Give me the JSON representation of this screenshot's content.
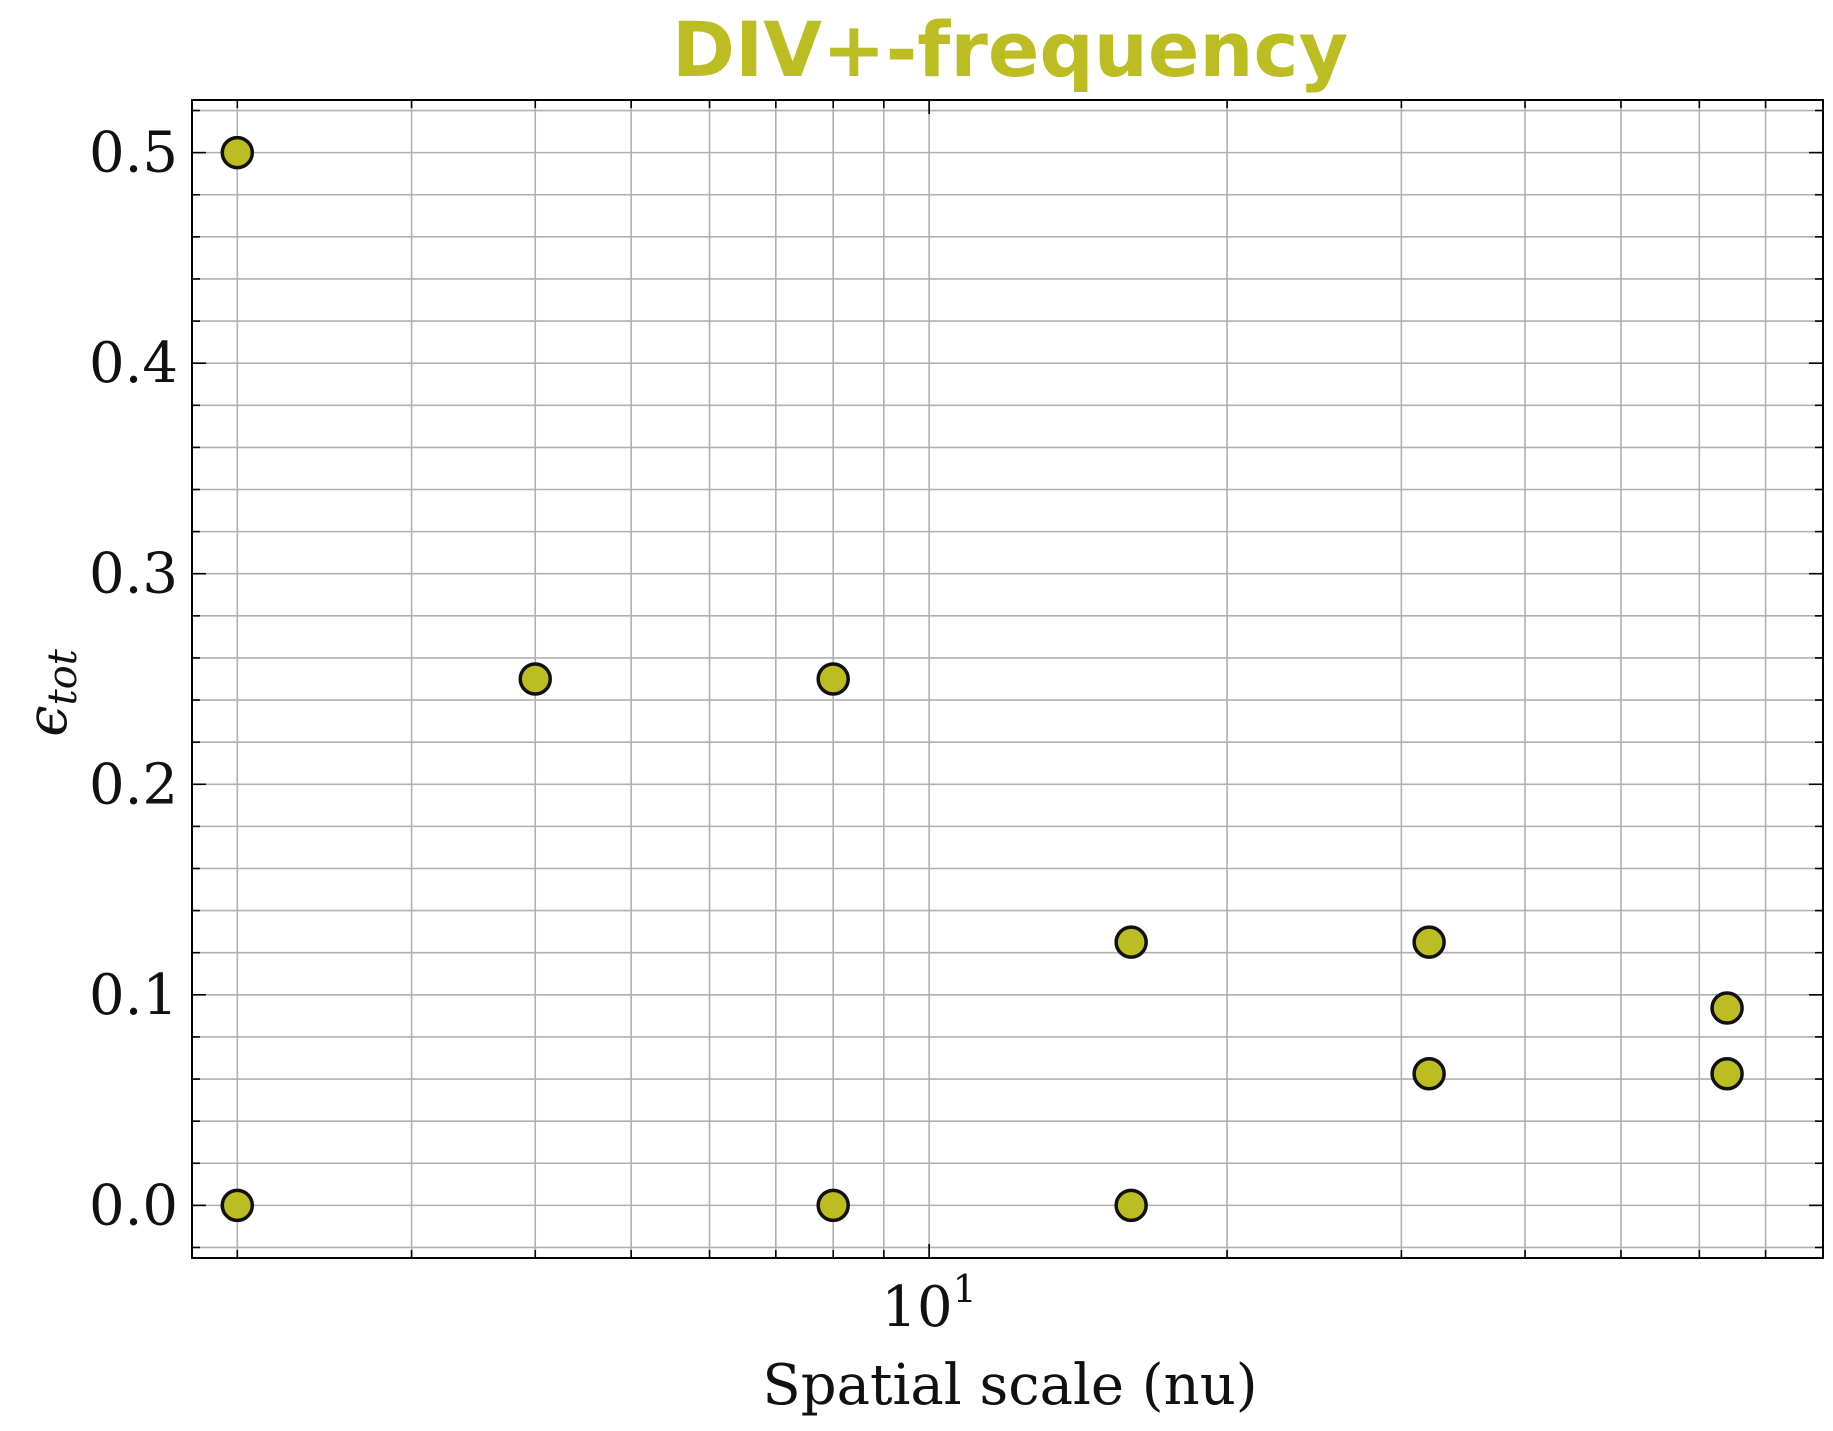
{
  "chart_data": {
    "type": "scatter",
    "title": "DIV+-frequency",
    "xlabel": "Spatial scale (nu)",
    "ylabel": "ϵ",
    "ylabel_sub": "tot",
    "x_scale": "log",
    "xlim": [
      1.8,
      80
    ],
    "ylim": [
      -0.025,
      0.525
    ],
    "xticks": [
      {
        "value": 10,
        "base": "10",
        "exp": "1"
      }
    ],
    "yticks": [
      {
        "value": 0.0,
        "label": "0.0"
      },
      {
        "value": 0.1,
        "label": "0.1"
      },
      {
        "value": 0.2,
        "label": "0.2"
      },
      {
        "value": 0.3,
        "label": "0.3"
      },
      {
        "value": 0.4,
        "label": "0.4"
      },
      {
        "value": 0.5,
        "label": "0.5"
      }
    ],
    "grid": true,
    "marker_color": "#bcbd22",
    "title_color": "#bcbd22",
    "series": [
      {
        "points": [
          {
            "x": 2,
            "y": 0.5
          },
          {
            "x": 2,
            "y": 0.0
          },
          {
            "x": 4,
            "y": 0.25
          },
          {
            "x": 8,
            "y": 0.25
          },
          {
            "x": 8,
            "y": 0.0
          },
          {
            "x": 16,
            "y": 0.125
          },
          {
            "x": 16,
            "y": 0.0
          },
          {
            "x": 32,
            "y": 0.125
          },
          {
            "x": 32,
            "y": 0.0625
          },
          {
            "x": 64,
            "y": 0.09375
          },
          {
            "x": 64,
            "y": 0.0625
          }
        ]
      }
    ]
  }
}
